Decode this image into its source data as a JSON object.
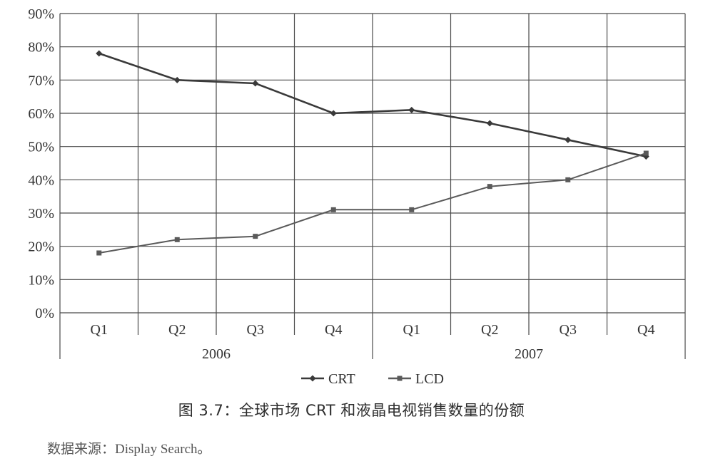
{
  "chart_data": {
    "type": "line",
    "categories": [
      "Q1",
      "Q2",
      "Q3",
      "Q4",
      "Q1",
      "Q2",
      "Q3",
      "Q4"
    ],
    "groups": [
      {
        "label": "2006",
        "span": [
          0,
          3
        ]
      },
      {
        "label": "2007",
        "span": [
          4,
          7
        ]
      }
    ],
    "y_ticks": [
      "0%",
      "10%",
      "20%",
      "30%",
      "40%",
      "50%",
      "60%",
      "70%",
      "80%",
      "90%"
    ],
    "ylim": [
      0,
      90
    ],
    "y_unit": "%",
    "grid": true,
    "legend_position": "bottom-center",
    "series": [
      {
        "name": "CRT",
        "marker": "diamond",
        "color": "#3a3a3a",
        "values": [
          78,
          70,
          69,
          60,
          61,
          57,
          52,
          47
        ]
      },
      {
        "name": "LCD",
        "marker": "square",
        "color": "#5a5a5a",
        "values": [
          18,
          22,
          23,
          31,
          31,
          38,
          40,
          48
        ]
      }
    ]
  },
  "caption": "图 3.7：全球市场 CRT 和液晶电视销售数量的份额",
  "source": "数据来源：Display Search。"
}
